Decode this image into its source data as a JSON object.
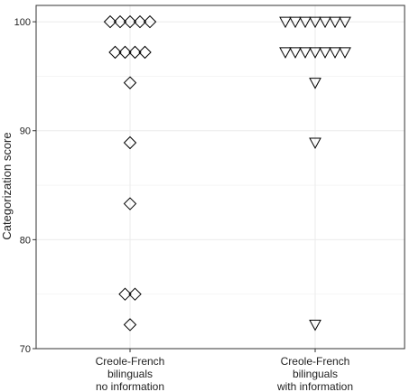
{
  "chart_data": {
    "type": "scatter",
    "title": "",
    "xlabel": "",
    "ylabel": "Categorization score",
    "ylim": [
      70,
      101.5
    ],
    "yticks": [
      70,
      80,
      90,
      100
    ],
    "grid": true,
    "legend": "none",
    "categories": [
      [
        "Creole-French",
        "bilinguals",
        "no information"
      ],
      [
        "Creole-French",
        "bilinguals",
        "with information"
      ]
    ],
    "series": [
      {
        "marker": "diamond",
        "category_index": 0,
        "values": [
          100,
          100,
          100,
          100,
          100,
          97.2,
          97.2,
          97.2,
          97.2,
          94.4,
          88.9,
          83.3,
          75,
          75,
          72.2
        ]
      },
      {
        "marker": "triangle-down",
        "category_index": 1,
        "values": [
          100,
          100,
          100,
          100,
          100,
          100,
          100,
          97.2,
          97.2,
          97.2,
          97.2,
          97.2,
          97.2,
          97.2,
          94.4,
          88.9,
          72.2
        ]
      }
    ],
    "colors": {
      "marker_stroke": "#000000",
      "grid": "#ebebeb",
      "axis": "#333333"
    }
  }
}
